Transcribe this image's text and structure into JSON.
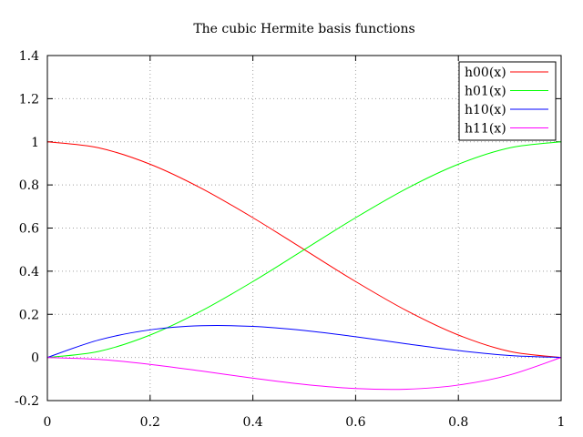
{
  "chart_data": {
    "type": "line",
    "title": "The cubic Hermite basis functions",
    "xlabel": "",
    "ylabel": "",
    "xlim": [
      0,
      1
    ],
    "ylim": [
      -0.2,
      1.4
    ],
    "grid": true,
    "legend": "top-right",
    "x_ticks": [
      "0",
      "0.2",
      "0.4",
      "0.6",
      "0.8",
      "1"
    ],
    "y_ticks": [
      "-0.2",
      "0",
      "0.2",
      "0.4",
      "0.6",
      "0.8",
      "1",
      "1.2",
      "1.4"
    ],
    "x": [
      0,
      0.1,
      0.2,
      0.3,
      0.4,
      0.5,
      0.6,
      0.7,
      0.8,
      0.9,
      1.0
    ],
    "series": [
      {
        "name": "h00(x)",
        "color": "#ff0000",
        "values": [
          1.0,
          0.972,
          0.896,
          0.784,
          0.648,
          0.5,
          0.352,
          0.216,
          0.104,
          0.028,
          0.0
        ]
      },
      {
        "name": "h01(x)",
        "color": "#00ff00",
        "values": [
          0.0,
          0.028,
          0.104,
          0.216,
          0.352,
          0.5,
          0.648,
          0.784,
          0.896,
          0.972,
          1.0
        ]
      },
      {
        "name": "h10(x)",
        "color": "#0000ff",
        "values": [
          0.0,
          0.081,
          0.128,
          0.147,
          0.144,
          0.125,
          0.096,
          0.063,
          0.032,
          0.009,
          0.0
        ]
      },
      {
        "name": "h11(x)",
        "color": "#ff00ff",
        "values": [
          0.0,
          -0.009,
          -0.032,
          -0.063,
          -0.096,
          -0.125,
          -0.144,
          -0.147,
          -0.128,
          -0.081,
          0.0
        ]
      }
    ]
  }
}
